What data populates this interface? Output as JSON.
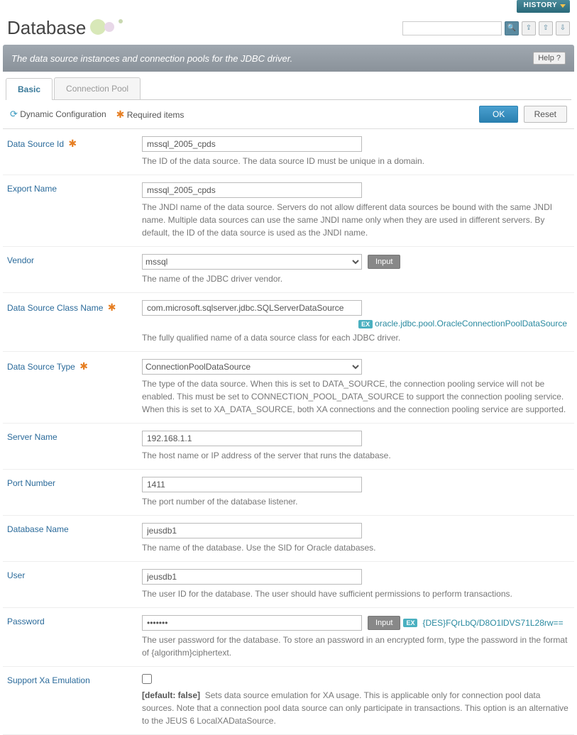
{
  "header": {
    "history_label": "HISTORY",
    "title": "Database",
    "description": "The data source instances and connection pools for the JDBC driver.",
    "help_label": "Help ?"
  },
  "tabs": {
    "basic": "Basic",
    "connection_pool": "Connection Pool"
  },
  "toolbar": {
    "dynamic_config": "Dynamic Configuration",
    "required_items": "Required items",
    "ok": "OK",
    "reset": "Reset"
  },
  "fields": {
    "data_source_id": {
      "label": "Data Source Id",
      "value": "mssql_2005_cpds",
      "help": "The ID of the data source. The data source ID must be unique in a domain."
    },
    "export_name": {
      "label": "Export Name",
      "value": "mssql_2005_cpds",
      "help": "The JNDI name of the data source. Servers do not allow different data sources be bound with the same JNDI name. Multiple data sources can use the same JNDI name only when they are used in different servers. By default, the ID of the data source is used as the JNDI name."
    },
    "vendor": {
      "label": "Vendor",
      "value": "mssql",
      "input_btn": "Input",
      "help": "The name of the JDBC driver vendor."
    },
    "class_name": {
      "label": "Data Source Class Name",
      "value": "com.microsoft.sqlserver.jdbc.SQLServerDataSource",
      "example": "oracle.jdbc.pool.OracleConnectionPoolDataSource",
      "help": "The fully qualified name of a data source class for each JDBC driver."
    },
    "ds_type": {
      "label": "Data Source Type",
      "value": "ConnectionPoolDataSource",
      "help": "The type of the data source. When this is set to DATA_SOURCE, the connection pooling service will not be enabled. This must be set to CONNECTION_POOL_DATA_SOURCE to support the connection pooling service. When this is set to XA_DATA_SOURCE, both XA connections and the connection pooling service are supported."
    },
    "server_name": {
      "label": "Server Name",
      "value": "192.168.1.1",
      "help": "The host name or IP address of the server that runs the database."
    },
    "port": {
      "label": "Port Number",
      "value": "1411",
      "help": "The port number of the database listener."
    },
    "db_name": {
      "label": "Database Name",
      "value": "jeusdb1",
      "help": "The name of the database. Use the SID for Oracle databases."
    },
    "user": {
      "label": "User",
      "value": "jeusdb1",
      "help": "The user ID for the database. The user should have sufficient permissions to perform transactions."
    },
    "password": {
      "label": "Password",
      "value": "•••••••",
      "input_btn": "Input",
      "example": "{DES}FQrLbQ/D8O1lDVS71L28rw==",
      "help": "The user password for the database. To store an password in an encrypted form, type the password in the format of {algorithm}ciphertext."
    },
    "xa_emulation": {
      "label": "Support Xa Emulation",
      "default_label": "[default: false]",
      "help": "Sets data source emulation for XA usage. This is applicable only for connection pool data sources. Note that a connection pool data source can only participate in transactions. This option is an alternative to the JEUS 6 LocalXADataSource."
    }
  },
  "ex_badge": "EX"
}
